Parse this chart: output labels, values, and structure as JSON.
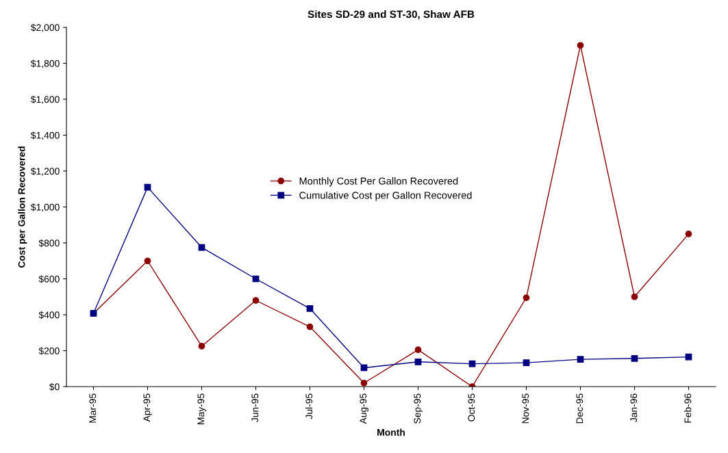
{
  "chart_data": {
    "type": "line",
    "title": "Sites SD-29 and ST-30, Shaw AFB",
    "xlabel": "Month",
    "ylabel": "Cost per Gallon Recovered",
    "categories": [
      "Mar-95",
      "Apr-95",
      "May-95",
      "Jun-95",
      "Jul-95",
      "Aug-95",
      "Sep-95",
      "Oct-95",
      "Nov-95",
      "Dec-95",
      "Jan-96",
      "Feb-96"
    ],
    "series": [
      {
        "name": "Monthly Cost Per Gallon Recovered",
        "color": "#8b0000",
        "marker": "circle",
        "values": [
          408,
          700,
          225,
          480,
          333,
          20,
          205,
          0,
          495,
          1900,
          500,
          850
        ]
      },
      {
        "name": "Cumulative Cost per Gallon Recovered",
        "color": "#000080",
        "marker": "square",
        "values": [
          408,
          1110,
          775,
          600,
          435,
          105,
          138,
          127,
          133,
          152,
          157,
          165
        ]
      }
    ],
    "ylim": [
      0,
      2000
    ],
    "yticks": [
      {
        "value": 0,
        "label": "$0"
      },
      {
        "value": 200,
        "label": "$200"
      },
      {
        "value": 400,
        "label": "$400"
      },
      {
        "value": 600,
        "label": "$600"
      },
      {
        "value": 800,
        "label": "$800"
      },
      {
        "value": 1000,
        "label": "$1,000"
      },
      {
        "value": 1200,
        "label": "$1,200"
      },
      {
        "value": 1400,
        "label": "$1,400"
      },
      {
        "value": 1600,
        "label": "$1,600"
      },
      {
        "value": 1800,
        "label": "$1,800"
      },
      {
        "value": 2000,
        "label": "$2,000"
      }
    ],
    "grid": false,
    "legend": "center",
    "line_style": "solid"
  }
}
